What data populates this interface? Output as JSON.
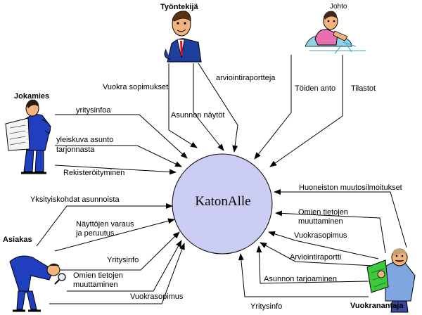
{
  "system": {
    "name": "KatonAlle",
    "fill": "#cccdf2"
  },
  "actors": {
    "tyontekija": "Työntekijä",
    "johto": "Johto",
    "jokamies": "Jokamies",
    "asiakas": "Asiakas",
    "vuokranantaja": "Vuokranantaja"
  },
  "flows": {
    "vuokra_sopimukset": "Vuokra sopimukset",
    "arviointiraportteja": "arviointiraportteja",
    "asunnon_naytot": "Asunnon näytöt",
    "toiden_anto": "Töiden anto",
    "tilastot": "Tilastot",
    "yritysinfoa": "yritysinfoa",
    "yleiskuva_1": "yleiskuva asunto",
    "yleiskuva_2": "tarjonnasta",
    "rekisteroityminen": "Rekisteröityminen",
    "yksityiskohdat": "Yksityiskohdat asunnoista",
    "nayttojen_1": "Näyttöjen varaus",
    "nayttojen_2": "ja peruutus",
    "yritysinfo_asiakas": "Yritysinfo",
    "omien_asiakas_1": "Omien tietojen",
    "omien_asiakas_2": "muuttaminen",
    "vuokrasopimus_asiakas": "Vuokrasopimus",
    "huoneiston": "Huoneiston muutosilmoitukset",
    "omien_vuokr_1": "Omien tietojen",
    "omien_vuokr_2": "muuttaminen",
    "vuokrasopimus_vuokr": "Vuokrasopimus",
    "arviointiraportti": "Arviointiraportti",
    "asunnon_tarjoaminen": "Asunnon tarjoaminen",
    "yritysinfo_vuokr": "Yritysinfo"
  }
}
